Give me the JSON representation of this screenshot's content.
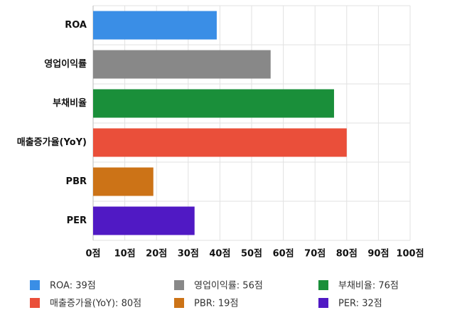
{
  "chart_data": {
    "type": "hbar",
    "categories": [
      "ROA",
      "영업이익률",
      "부채비율",
      "매출증가율(YoY)",
      "PBR",
      "PER"
    ],
    "values": [
      39,
      56,
      76,
      80,
      19,
      32
    ],
    "colors": [
      "#3a8ee6",
      "#888888",
      "#1a8f3a",
      "#ea4f3a",
      "#cc7317",
      "#5019c4"
    ],
    "legend_labels": [
      "ROA: 39점",
      "영업이익률: 56점",
      "부채비율: 76점",
      "매출증가율(YoY): 80점",
      "PBR: 19점",
      "PER: 32점"
    ],
    "legend": "bottom",
    "xlim": [
      0,
      100
    ],
    "xticks": [
      {
        "value": 0,
        "label": "0점"
      },
      {
        "value": 10,
        "label": "10점"
      },
      {
        "value": 20,
        "label": "20점"
      },
      {
        "value": 30,
        "label": "30점"
      },
      {
        "value": 40,
        "label": "40점"
      },
      {
        "value": 50,
        "label": "50점"
      },
      {
        "value": 60,
        "label": "60점"
      },
      {
        "value": 70,
        "label": "70점"
      },
      {
        "value": 80,
        "label": "80점"
      },
      {
        "value": 90,
        "label": "90점"
      },
      {
        "value": 100,
        "label": "100점"
      }
    ],
    "grid": true
  }
}
